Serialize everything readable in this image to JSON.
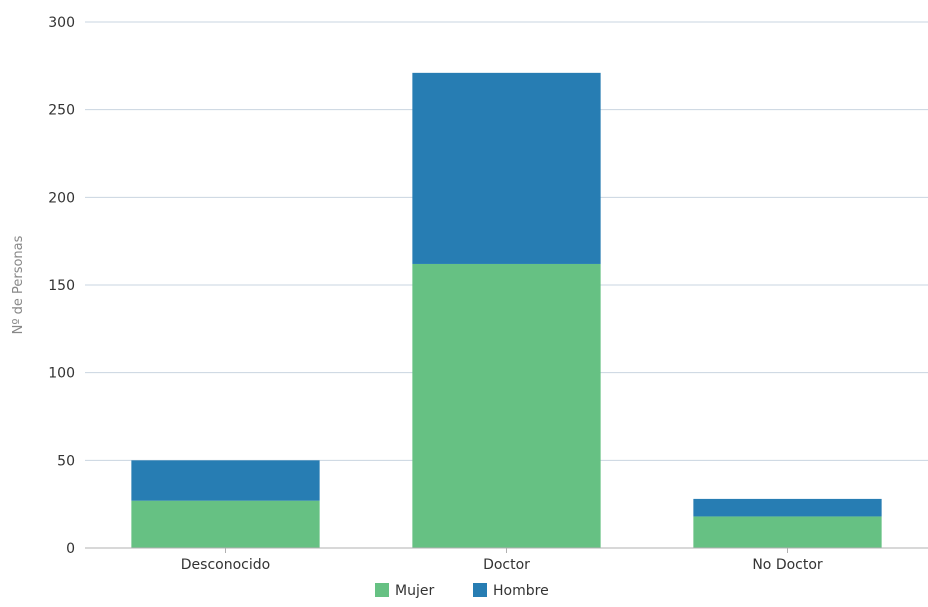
{
  "chart_data": {
    "type": "bar",
    "stacked": true,
    "categories": [
      "Desconocido",
      "Doctor",
      "No Doctor"
    ],
    "series": [
      {
        "name": "Mujer",
        "color": "#66c183",
        "values": [
          27,
          162,
          18
        ]
      },
      {
        "name": "Hombre",
        "color": "#277db3",
        "values": [
          23,
          109,
          10
        ]
      }
    ],
    "title": "",
    "xlabel": "",
    "ylabel": "Nº de Personas",
    "ylim": [
      0,
      300
    ],
    "yticks": [
      0,
      50,
      100,
      150,
      200,
      250,
      300
    ],
    "grid": true,
    "legend": "bottom-center"
  }
}
